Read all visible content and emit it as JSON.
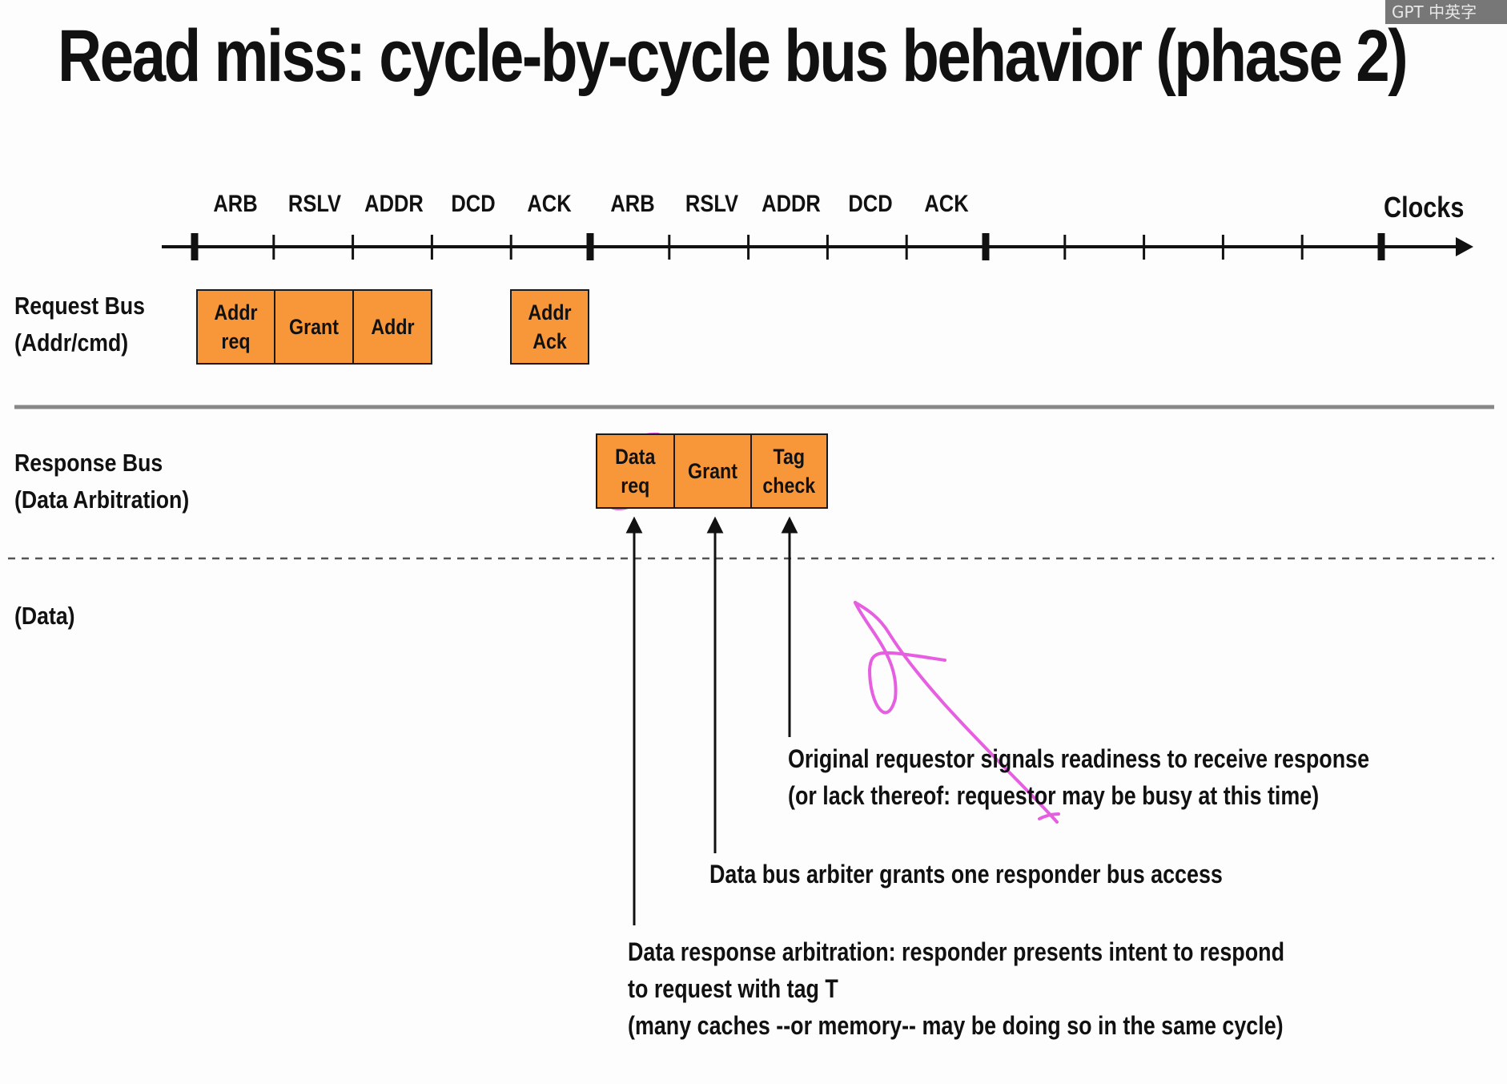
{
  "title": "Read miss: cycle-by-cycle bus behavior (phase 2)",
  "timeline": {
    "phases": [
      "ARB",
      "RSLV",
      "ADDR",
      "DCD",
      "ACK",
      "ARB",
      "RSLV",
      "ADDR",
      "DCD",
      "ACK"
    ],
    "clocks_label": "Clocks"
  },
  "rows": {
    "request_bus": {
      "line1": "Request Bus",
      "line2": "(Addr/cmd)"
    },
    "response_bus": {
      "line1": "Response Bus",
      "line2": "(Data Arbitration)"
    },
    "data": {
      "line1": "(Data)"
    }
  },
  "boxes": {
    "addr_req": "Addr\nreq",
    "grant_request": "Grant",
    "addr": "Addr",
    "addr_ack": "Addr\nAck",
    "data_req": "Data\nreq",
    "grant_response": "Grant",
    "tag_check": "Tag\ncheck"
  },
  "annotations": {
    "requestor_ready": {
      "line1": "Original requestor signals readiness to receive response",
      "line2": "(or lack thereof: requestor may be busy at this time)"
    },
    "arbiter_grant": {
      "line1": "Data bus arbiter grants one responder bus access"
    },
    "data_arbitration": {
      "line1": "Data response arbitration: responder presents intent to respond",
      "line2": "to request with tag T",
      "line3": "(many caches --or memory-- may be doing so in the same cycle)"
    }
  },
  "watermark": "GPT 中英字",
  "colors": {
    "box_fill": "#f7973a",
    "ink_markup": "#e65fe0"
  }
}
